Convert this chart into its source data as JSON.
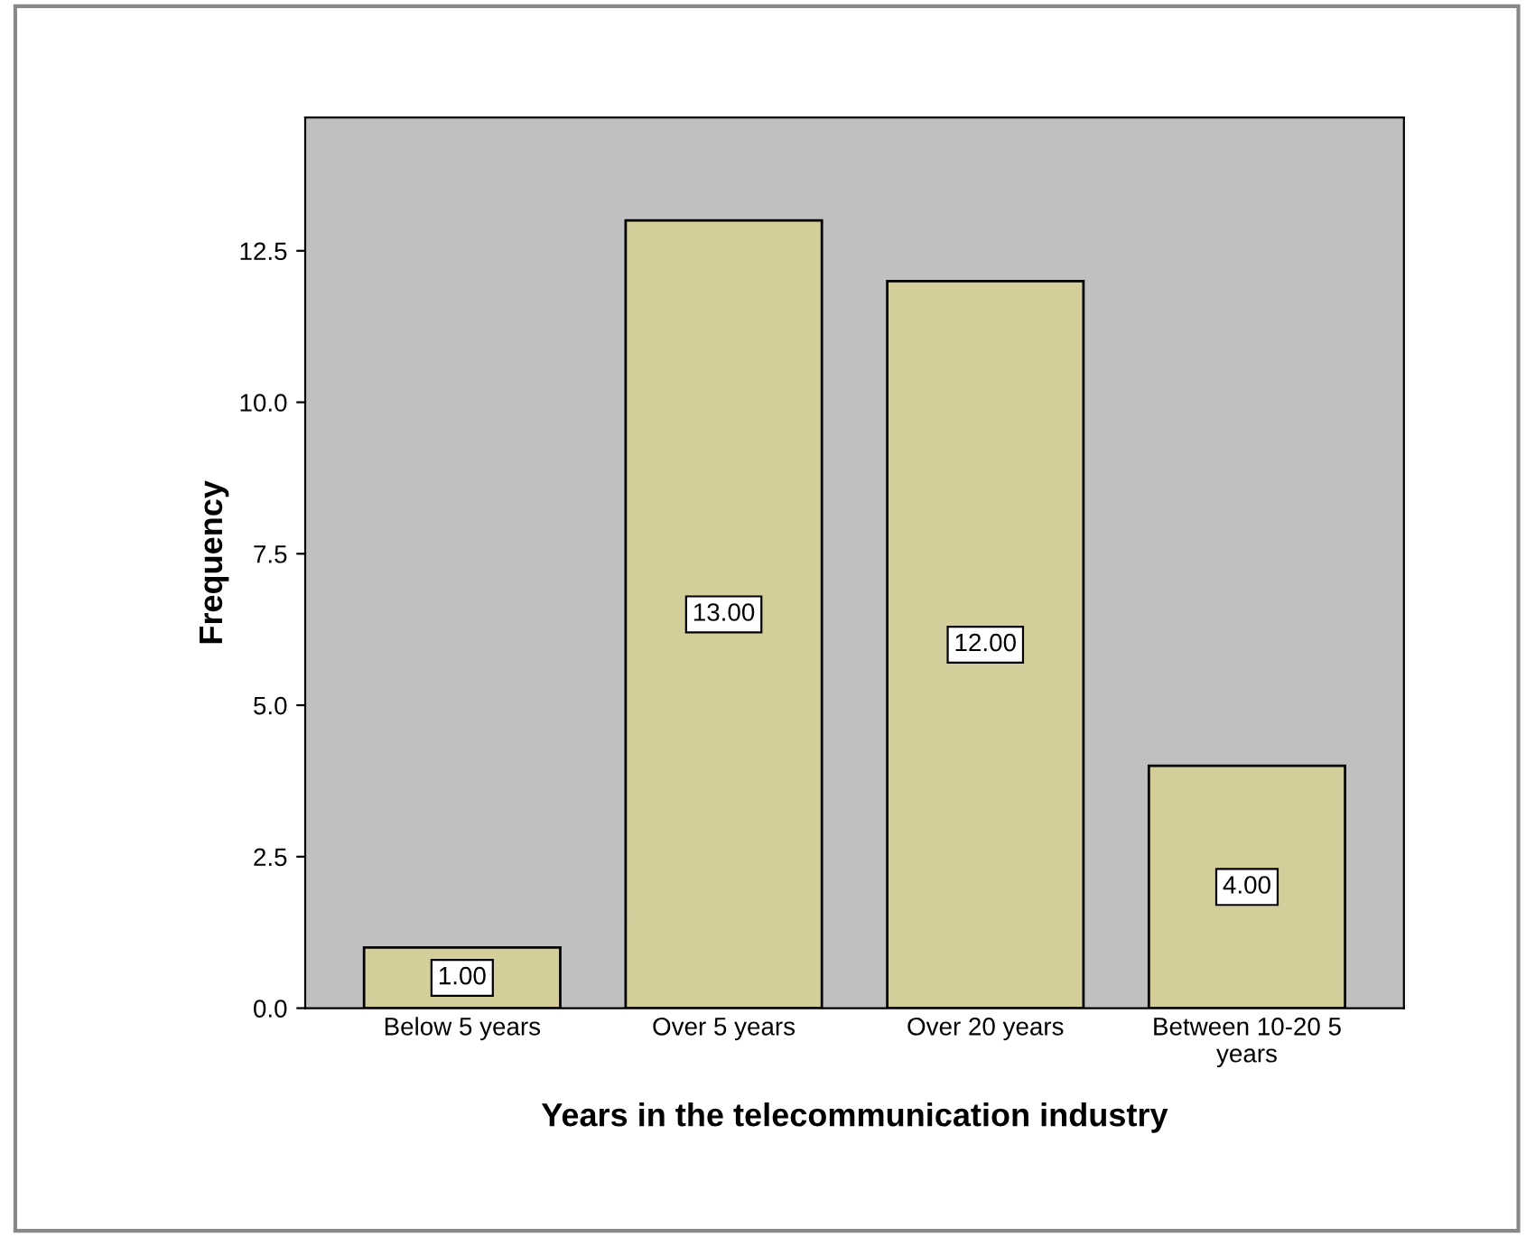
{
  "chart_data": {
    "type": "bar",
    "xlabel": "Years in the telecommunication industry",
    "ylabel": "Frequency",
    "categories": [
      "Below 5 years",
      "Over 5 years",
      "Over 20 years",
      "Between 10-20 5\nyears"
    ],
    "values": [
      1,
      13,
      12,
      4
    ],
    "color": "#d4cf9a",
    "value_labels": [
      "1.00",
      "13.00",
      "12.00",
      "4.00"
    ],
    "ylim": [
      0,
      14.7
    ],
    "yticks": [
      {
        "value": 0,
        "label": "0.0"
      },
      {
        "value": 2.5,
        "label": "2.5"
      },
      {
        "value": 5,
        "label": "5.0"
      },
      {
        "value": 7.5,
        "label": "7.5"
      },
      {
        "value": 10,
        "label": "10.0"
      },
      {
        "value": 12.5,
        "label": "12.5"
      }
    ],
    "grid": false
  }
}
